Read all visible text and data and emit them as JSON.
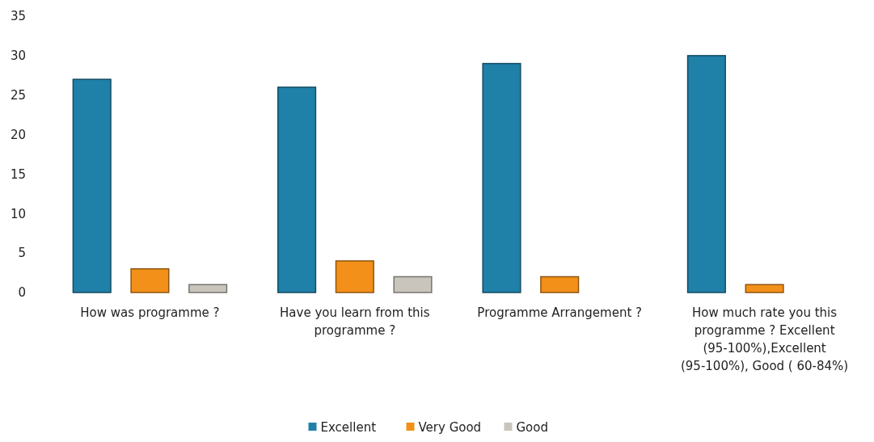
{
  "chart_data": {
    "type": "bar",
    "categories": [
      "How was programme ?",
      "Have you learn from this programme ?",
      "Programme Arrangement ?",
      "How much rate you this programme ? Excellent (95-100%),Excellent (95-100%), Good ( 60-84%)"
    ],
    "series": [
      {
        "name": "Excellent",
        "color": "#1f80a8",
        "values": [
          27,
          26,
          29,
          30
        ]
      },
      {
        "name": "Very Good",
        "color": "#f39019",
        "values": [
          3,
          4,
          2,
          1
        ]
      },
      {
        "name": "Good",
        "color": "#c9c5bc",
        "values": [
          1,
          2,
          0,
          0
        ]
      }
    ],
    "ylim": [
      0,
      35
    ],
    "yticks": [
      0,
      5,
      10,
      15,
      20,
      25,
      30,
      35
    ],
    "grid": false,
    "legend": "bottom"
  }
}
